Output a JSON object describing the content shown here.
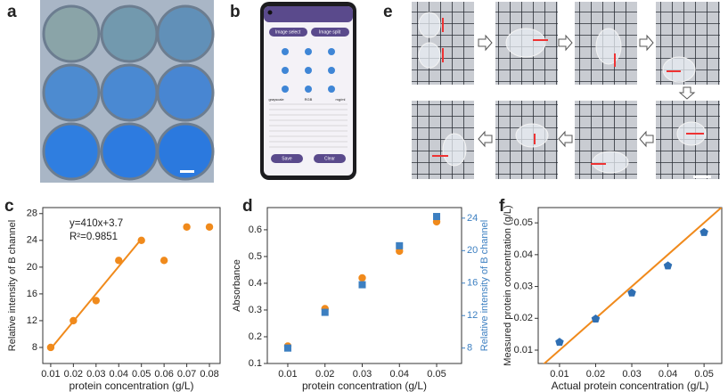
{
  "panels": {
    "a": {
      "label": "a"
    },
    "b": {
      "label": "b",
      "buttons": [
        "Image select",
        "Image split"
      ],
      "headers": [
        "grayscale",
        "RGB",
        "mg/ml"
      ],
      "actions": [
        "Save",
        "Clear"
      ]
    },
    "e": {
      "label": "e"
    }
  },
  "chart_data": [
    {
      "type": "scatter",
      "panel": "c",
      "xlabel": "protein concentration (g/L)",
      "ylabel": "Relative intensity of B channel",
      "annotations": [
        "y=410x+3.7",
        "R²=0.9851"
      ],
      "xlim": [
        0.0065,
        0.0847
      ],
      "xticks": [
        0.01,
        0.02,
        0.03,
        0.04,
        0.05,
        0.06,
        0.07,
        0.08
      ],
      "ylim": [
        5.6,
        28.9
      ],
      "yticks": [
        8,
        12,
        16,
        20,
        24,
        28
      ],
      "series": [
        {
          "color": "#f08a1c",
          "marker": "circle",
          "x": [
            0.01,
            0.02,
            0.03,
            0.04,
            0.05,
            0.06,
            0.07,
            0.08
          ],
          "values": [
            8,
            12,
            15,
            21,
            24,
            21,
            26,
            26
          ]
        }
      ],
      "lines": [
        {
          "color": "#f08a1c",
          "x": [
            0.01,
            0.05
          ],
          "values": [
            7.8,
            24.2
          ]
        }
      ]
    },
    {
      "type": "scatter",
      "panel": "d",
      "xlabel": "protein concentration (g/L)",
      "ylabel": "Absorbance",
      "y2label": "Relative intensity of B channel",
      "xlim": [
        0.0045,
        0.0567
      ],
      "xticks": [
        0.01,
        0.02,
        0.03,
        0.04,
        0.05
      ],
      "ylim": [
        0.1,
        0.683
      ],
      "yticks": [
        0.1,
        0.2,
        0.3,
        0.4,
        0.5,
        0.6
      ],
      "y2lim": [
        6.1,
        25.3
      ],
      "y2ticks": [
        8,
        12,
        16,
        20,
        24
      ],
      "y2color": "#3c7fc1",
      "series": [
        {
          "color": "#f08a1c",
          "marker": "circle",
          "x": [
            0.01,
            0.02,
            0.03,
            0.04,
            0.05
          ],
          "values": [
            0.165,
            0.305,
            0.42,
            0.52,
            0.63
          ]
        },
        {
          "color": "#3c7fc1",
          "marker": "square",
          "axis": "y2",
          "x": [
            0.01,
            0.02,
            0.03,
            0.04,
            0.05
          ],
          "values": [
            8.0,
            12.4,
            15.8,
            20.6,
            24.2
          ]
        }
      ]
    },
    {
      "type": "scatter",
      "panel": "f",
      "xlabel": "Actual protein concentration (g/L)",
      "ylabel": "Measured protein concentration (g/L)",
      "xlim": [
        0.0041,
        0.0549
      ],
      "xticks": [
        0.01,
        0.02,
        0.03,
        0.04,
        0.05
      ],
      "ylim": [
        0.0058,
        0.0548
      ],
      "yticks": [
        0.01,
        0.02,
        0.03,
        0.04,
        0.05
      ],
      "series": [
        {
          "color": "#2f6fb3",
          "marker": "pentagon",
          "x": [
            0.01,
            0.02,
            0.03,
            0.04,
            0.05
          ],
          "values": [
            0.0125,
            0.0198,
            0.028,
            0.0365,
            0.047
          ]
        }
      ],
      "lines": [
        {
          "color": "#f08a1c",
          "x": [
            0.0041,
            0.0549
          ],
          "values": [
            0.0041,
            0.0549
          ]
        }
      ]
    }
  ]
}
